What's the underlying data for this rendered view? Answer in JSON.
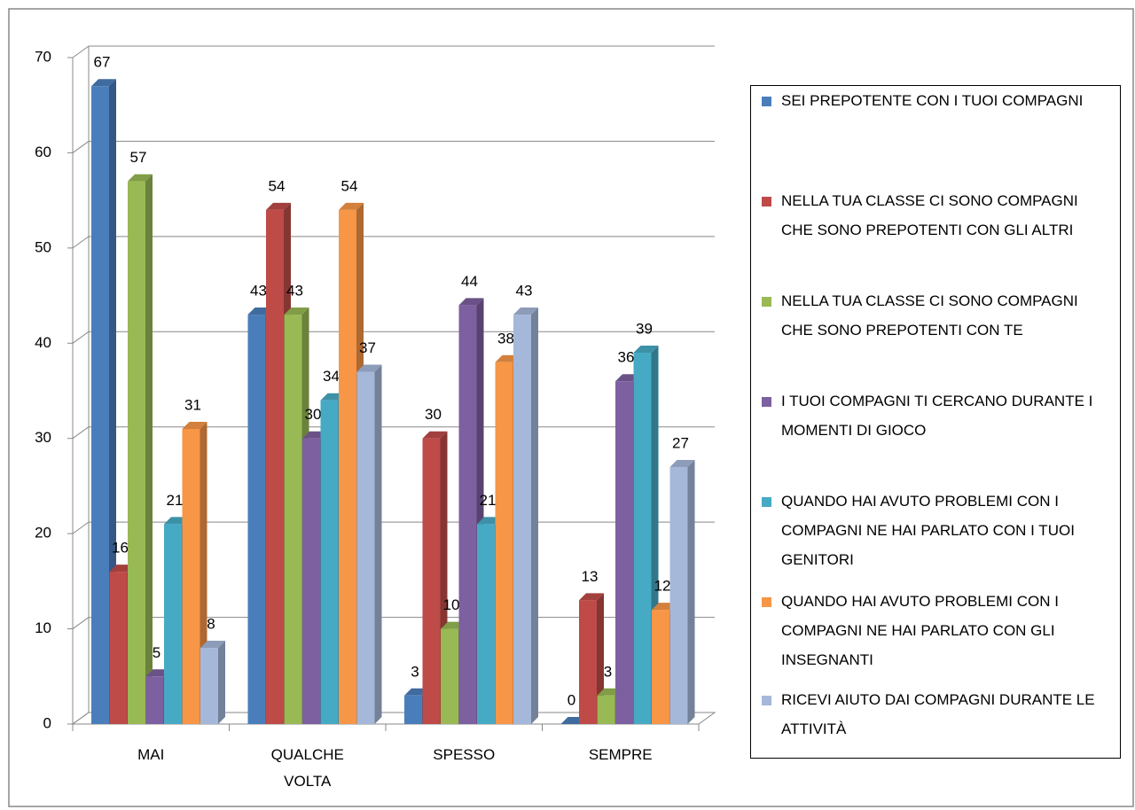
{
  "chart_data": {
    "type": "bar3d",
    "categories": [
      "MAI",
      "QUALCHE VOLTA",
      "SPESSO",
      "SEMPRE"
    ],
    "series": [
      {
        "name": "SEI PREPOTENTE CON I TUOI COMPAGNI",
        "color": "#4a7ebb",
        "values": [
          67,
          43,
          3,
          0
        ]
      },
      {
        "name": "NELLA TUA CLASSE CI SONO COMPAGNI CHE SONO PREPOTENTI CON GLI ALTRI",
        "color": "#be4b48",
        "values": [
          16,
          54,
          30,
          13
        ]
      },
      {
        "name": "NELLA TUA CLASSE CI SONO COMPAGNI CHE SONO PREPOTENTI CON TE",
        "color": "#98b954",
        "values": [
          57,
          43,
          10,
          3
        ]
      },
      {
        "name": "I TUOI COMPAGNI TI CERCANO DURANTE I MOMENTI DI GIOCO",
        "color": "#7d60a0",
        "values": [
          5,
          30,
          44,
          36
        ]
      },
      {
        "name": "QUANDO HAI AVUTO PROBLEMI CON I COMPAGNI NE HAI PARLATO CON I TUOI GENITORI",
        "color": "#46aac5",
        "values": [
          21,
          34,
          21,
          39
        ]
      },
      {
        "name": "QUANDO HAI AVUTO PROBLEMI CON I COMPAGNI NE HAI PARLATO CON GLI INSEGNANTI",
        "color": "#f79646",
        "values": [
          31,
          54,
          38,
          12
        ]
      },
      {
        "name": "RICEVI AIUTO DAI COMPAGNI DURANTE LE ATTIVITÀ",
        "color": "#a5b8da",
        "values": [
          8,
          37,
          43,
          27
        ]
      }
    ],
    "ylim": [
      0,
      70
    ],
    "yticks": [
      0,
      10,
      20,
      30,
      40,
      50,
      60,
      70
    ],
    "grid": true,
    "legend": "right"
  }
}
